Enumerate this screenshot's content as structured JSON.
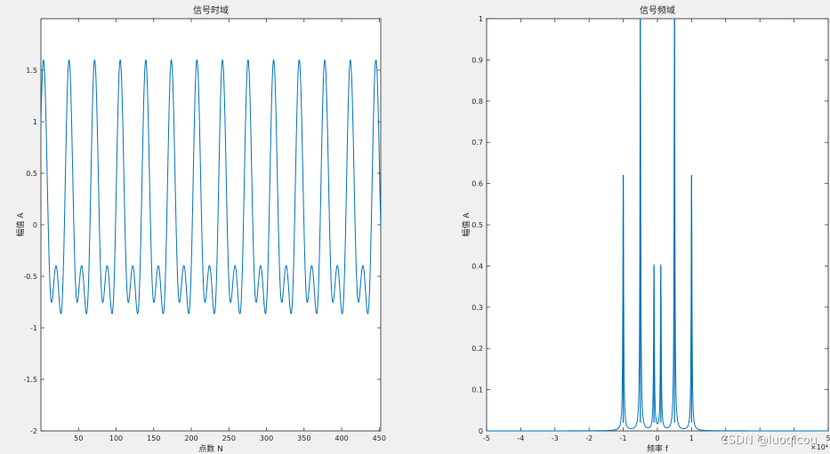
{
  "watermark": "CSDN @luoqicou",
  "chart_data": [
    {
      "type": "line",
      "title": "信号时域",
      "xlabel": "点数 N",
      "ylabel": "幅值 A",
      "xlim": [
        0,
        452
      ],
      "ylim": [
        -2,
        2
      ],
      "xticks": [
        50,
        100,
        150,
        200,
        250,
        300,
        350,
        400,
        450
      ],
      "yticks": [
        -2,
        -1.5,
        -1,
        -0.5,
        0,
        0.5,
        1,
        1.5
      ],
      "line_color": "#0072bd",
      "series": [
        {
          "signal_model": {
            "components": [
              {
                "amplitude": 1.0,
                "cycles_per_sample": 0.0294
              },
              {
                "amplitude": 0.6,
                "cycles_per_sample": 0.0588
              }
            ]
          },
          "sample_count": 452
        }
      ]
    },
    {
      "type": "line",
      "title": "信号频域",
      "xlabel": "频率 f",
      "ylabel": "幅值 A",
      "xlim": [
        -50000,
        50000
      ],
      "ylim": [
        0,
        1
      ],
      "xticks": [
        -5,
        -4,
        -3,
        -2,
        -1,
        0,
        1,
        2,
        3,
        4,
        5
      ],
      "xtick_multiplier": "×10⁴",
      "yticks": [
        0,
        0.1,
        0.2,
        0.3,
        0.4,
        0.5,
        0.6,
        0.7,
        0.8,
        0.9,
        1
      ],
      "line_color": "#0072bd",
      "series": [
        {
          "peaks": [
            {
              "f": -10000,
              "amplitude": 0.62
            },
            {
              "f": -5000,
              "amplitude": 1.0
            },
            {
              "f": -1000,
              "amplitude": 0.4
            },
            {
              "f": 1000,
              "amplitude": 0.4
            },
            {
              "f": 5000,
              "amplitude": 1.0
            },
            {
              "f": 10000,
              "amplitude": 0.62
            }
          ]
        }
      ]
    }
  ]
}
